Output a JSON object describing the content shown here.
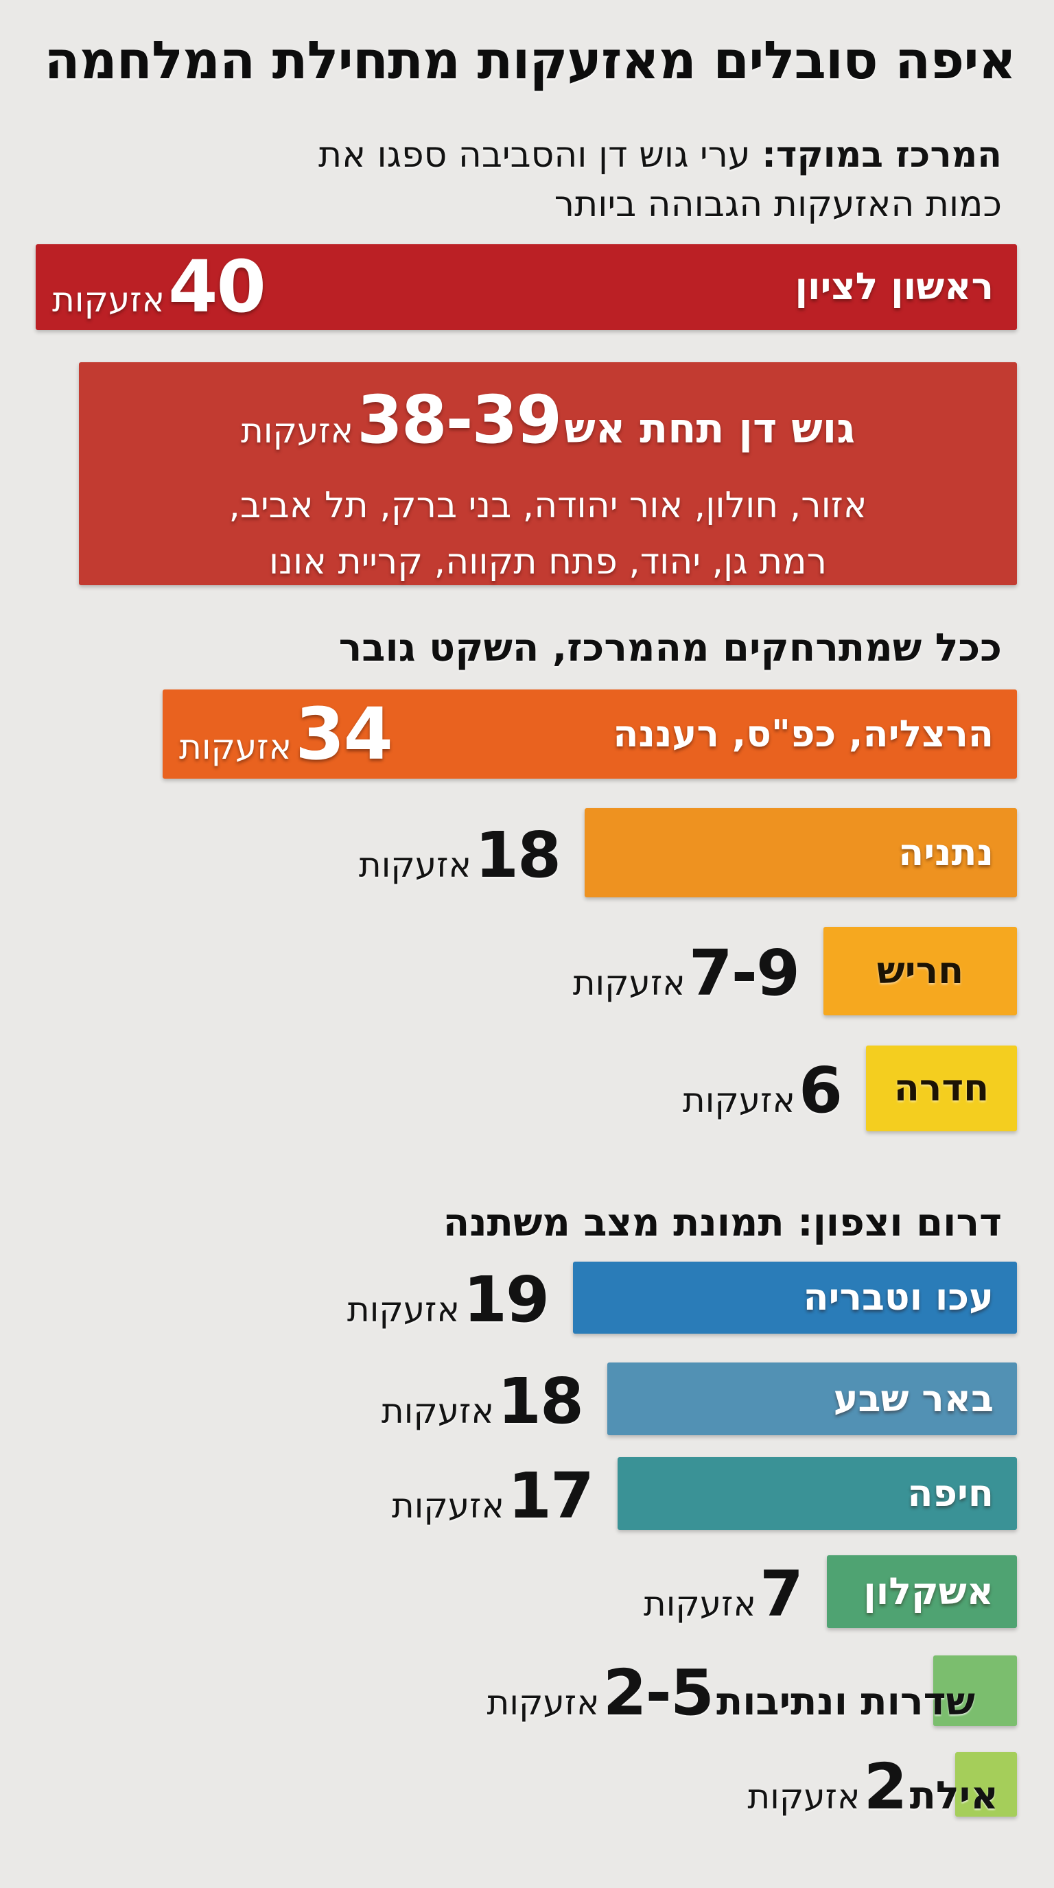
{
  "page": {
    "title": "איפה סובלים מאזעקות מתחילת המלחמה",
    "intro": {
      "lead_bold": "המרכז במוקד:",
      "line1_rest": " ערי גוש דן והסביבה ספגו את",
      "line2": "כמות האזעקות הגבוהה ביותר"
    },
    "section_center_heading": "ככל שמתרחקים מהמרכז, השקט גובר",
    "section_south_north_heading": "דרום וצפון: תמונת מצב משתנה",
    "unit_word": "אזעקות",
    "background_color": "#EAE9E7"
  },
  "callout": {
    "title": "גוש דן תחת אש",
    "value_label": "38-39",
    "value_range": [
      38,
      39
    ],
    "unit": "אזעקות",
    "cities_line1": "אזור, חולון, אור יהודה, בני ברק, תל אביב,",
    "cities_line2": "רמת גן, יהוד, פתח תקווה, קריית אונו",
    "color": "#C23B31"
  },
  "chart_data": {
    "type": "bar",
    "orientation": "horizontal-rtl",
    "title": "איפה סובלים מאזעקות מתחילת המלחמה",
    "unit": "אזעקות",
    "legend": "none",
    "groups": [
      {
        "id": "center",
        "heading": "ככל שמתרחקים מהמרכז, השקט גובר"
      },
      {
        "id": "south-north",
        "heading": "דרום וצפון: תמונת מצב משתנה"
      }
    ],
    "bars": [
      {
        "id": "rishon-lezion",
        "group": "center-top",
        "city": "ראשון לציון",
        "value_label": "40",
        "value": 40,
        "color": "#BB2025",
        "value_position": "inside",
        "city_position": "inside",
        "city_text_color": "#FFFFFF"
      },
      {
        "id": "herzliya-kfar-saba-raanana",
        "group": "center",
        "city": "הרצליה, כפ\"ס, רעננה",
        "value_label": "34",
        "value": 34,
        "color": "#E9621F",
        "value_position": "inside",
        "city_position": "inside",
        "city_text_color": "#FFFFFF"
      },
      {
        "id": "netanya",
        "group": "center",
        "city": "נתניה",
        "value_label": "18",
        "value": 18,
        "color": "#EE9220",
        "value_position": "outside",
        "city_position": "inside",
        "city_text_color": "#FFFFFF"
      },
      {
        "id": "harish",
        "group": "center",
        "city": "חריש",
        "value_label": "7-9",
        "value": 8,
        "color": "#F6A81F",
        "value_position": "outside",
        "city_position": "inside-center",
        "city_text_color": "#1C1304"
      },
      {
        "id": "hadera",
        "group": "center",
        "city": "חדרה",
        "value_label": "6",
        "value": 6,
        "color": "#F4CE1F",
        "value_position": "outside",
        "city_position": "inside-center",
        "city_text_color": "#1C1304"
      },
      {
        "id": "akko-tiberias",
        "group": "south-north",
        "city": "עכו וטבריה",
        "value_label": "19",
        "value": 19,
        "color": "#2A7CB8",
        "value_position": "outside",
        "city_position": "inside",
        "city_text_color": "#FFFFFF"
      },
      {
        "id": "beer-sheva",
        "group": "south-north",
        "city": "באר שבע",
        "value_label": "18",
        "value": 18,
        "color": "#5291B4",
        "value_position": "outside",
        "city_position": "inside",
        "city_text_color": "#FFFFFF"
      },
      {
        "id": "haifa",
        "group": "south-north",
        "city": "חיפה",
        "value_label": "17",
        "value": 17,
        "color": "#3A9296",
        "value_position": "outside",
        "city_position": "inside",
        "city_text_color": "#FFFFFF"
      },
      {
        "id": "ashkelon",
        "group": "south-north",
        "city": "אשקלון",
        "value_label": "7",
        "value": 7,
        "color": "#4FA372",
        "value_position": "outside",
        "city_position": "inside",
        "city_text_color": "#FFFFFF"
      },
      {
        "id": "sderot-netivot",
        "group": "south-north",
        "city": "שדרות ונתיבות",
        "value_label": "2-5",
        "value": 3.5,
        "color": "#7BBE6E",
        "value_position": "outside",
        "city_position": "outside",
        "city_text_color": "#1A1A1A"
      },
      {
        "id": "eilat",
        "group": "south-north",
        "city": "אילת",
        "value_label": "2",
        "value": 2,
        "color": "#A5CE5A",
        "value_position": "outside",
        "city_position": "outside",
        "city_text_color": "#1A1A1A"
      }
    ]
  }
}
